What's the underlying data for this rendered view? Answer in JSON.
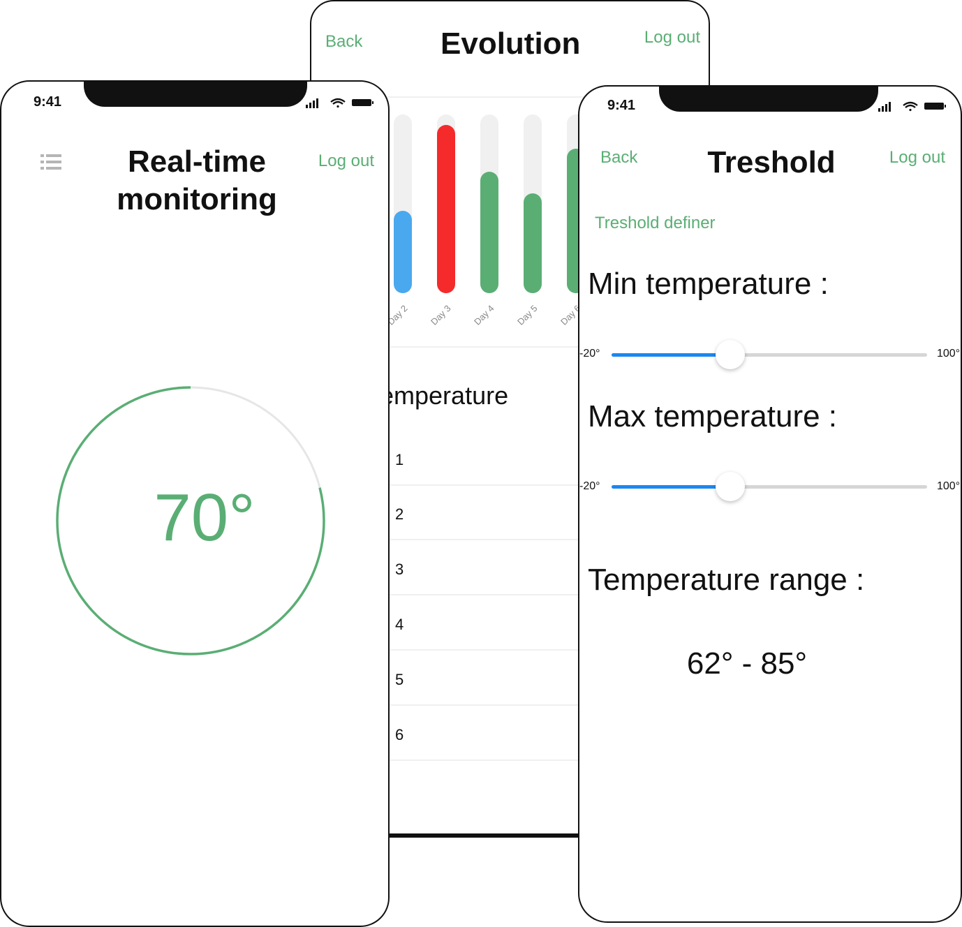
{
  "colors": {
    "accent": "#5aae74",
    "blue_bar": "#4aa8ee",
    "red_bar": "#f52a2a",
    "green_bar": "#5aae74",
    "slider": "#1b87f0"
  },
  "evolution": {
    "back_label": "Back",
    "title": "Evolution",
    "logout_label": "Log out",
    "chart_data": {
      "type": "bar",
      "categories": [
        "Day 2",
        "Day 3",
        "Day 4",
        "Day 5",
        "Day 6"
      ],
      "values": [
        46,
        94,
        68,
        56,
        81
      ],
      "colors": [
        "#4aa8ee",
        "#f52a2a",
        "#5aae74",
        "#5aae74",
        "#5aae74"
      ],
      "ylim": [
        0,
        100
      ]
    },
    "section_title": "Temperature",
    "rows": [
      "1",
      "2",
      "3",
      "4",
      "5",
      "6"
    ]
  },
  "realtime": {
    "time": "9:41",
    "menu_icon": "list-icon",
    "title": "Real-time monitoring",
    "logout_label": "Log out",
    "gauge_value": "70°",
    "gauge_fraction": 0.79
  },
  "threshold": {
    "time": "9:41",
    "back_label": "Back",
    "title": "Treshold",
    "logout_label": "Log out",
    "definer_label": "Treshold definer",
    "min_label": "Min temperature :",
    "max_label": "Max temperature :",
    "slider_min": "-20°",
    "slider_max": "100°",
    "min_fraction": 0.376,
    "max_fraction": 0.376,
    "range_label": "Temperature range :",
    "range_value": "62° - 85°"
  }
}
